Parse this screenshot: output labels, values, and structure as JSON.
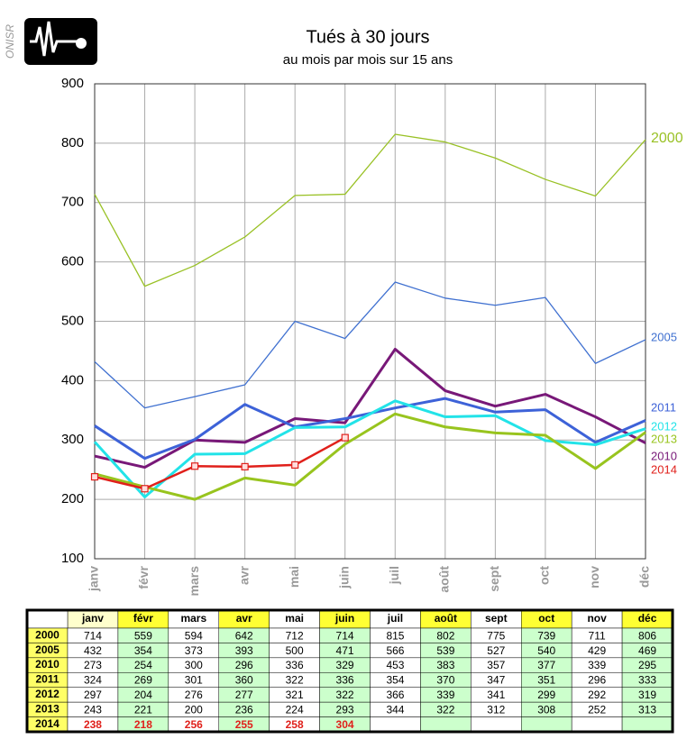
{
  "logo_text": "ONISR",
  "chart_data": {
    "type": "line",
    "title": "Tués à 30 jours",
    "subtitle": "au mois par mois sur 15 ans",
    "categories": [
      "janv",
      "févr",
      "mars",
      "avr",
      "mai",
      "juin",
      "juil",
      "août",
      "sept",
      "oct",
      "nov",
      "déc"
    ],
    "ylim": [
      100,
      900
    ],
    "yticks": [
      100,
      200,
      300,
      400,
      500,
      600,
      700,
      800,
      900
    ],
    "grid": true,
    "series": [
      {
        "name": "2000",
        "color": "#99c125",
        "width": 1.3,
        "values": [
          714,
          559,
          594,
          642,
          712,
          714,
          815,
          802,
          775,
          739,
          711,
          806
        ]
      },
      {
        "name": "2005",
        "color": "#3f70d0",
        "width": 1.3,
        "values": [
          432,
          354,
          373,
          393,
          500,
          471,
          566,
          539,
          527,
          540,
          429,
          469
        ]
      },
      {
        "name": "2010",
        "color": "#781878",
        "width": 3,
        "values": [
          273,
          254,
          300,
          296,
          336,
          329,
          453,
          383,
          357,
          377,
          339,
          295
        ]
      },
      {
        "name": "2011",
        "color": "#3d62d8",
        "width": 3,
        "values": [
          324,
          269,
          301,
          360,
          322,
          336,
          354,
          370,
          347,
          351,
          296,
          333
        ]
      },
      {
        "name": "2012",
        "color": "#22e3e8",
        "width": 3,
        "values": [
          297,
          204,
          276,
          277,
          321,
          322,
          366,
          339,
          341,
          299,
          292,
          319
        ]
      },
      {
        "name": "2013",
        "color": "#98c41e",
        "width": 3,
        "values": [
          243,
          221,
          200,
          236,
          224,
          293,
          344,
          322,
          312,
          308,
          252,
          313
        ]
      },
      {
        "name": "2014",
        "color": "#e0201b",
        "width": 2.5,
        "markers": true,
        "values": [
          238,
          218,
          256,
          255,
          258,
          304,
          null,
          null,
          null,
          null,
          null,
          null
        ]
      }
    ]
  }
}
